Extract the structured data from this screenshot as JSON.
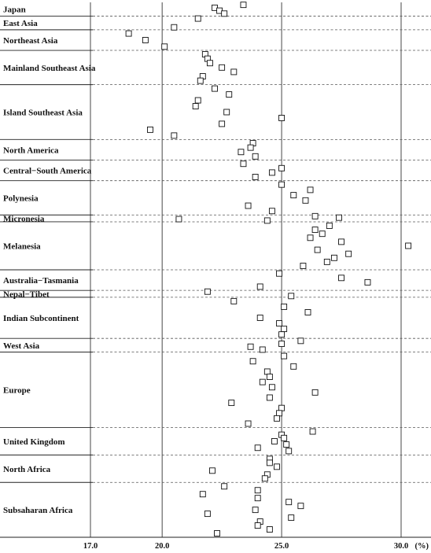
{
  "chart_data": {
    "type": "scatter",
    "x_unit": "(%)",
    "xlim": [
      17.0,
      30.5
    ],
    "x_ticks": [
      "17.0",
      "20.0",
      "25.0",
      "30.0"
    ],
    "x_tick_values": [
      17.0,
      20.0,
      25.0,
      30.0
    ],
    "grid": "vertical gridlines at ticks",
    "regions": [
      {
        "name": "Japan",
        "rows": 2
      },
      {
        "name": "East Asia",
        "rows": 2
      },
      {
        "name": "Northeast Asia",
        "rows": 3
      },
      {
        "name": "Mainland Southeast Asia",
        "rows": 5
      },
      {
        "name": "Island Southeast Asia",
        "rows": 8
      },
      {
        "name": "North America",
        "rows": 3
      },
      {
        "name": "Central−South America",
        "rows": 3
      },
      {
        "name": "Polynesia",
        "rows": 5
      },
      {
        "name": "Micronesia",
        "rows": 1
      },
      {
        "name": "Melanesia",
        "rows": 7
      },
      {
        "name": "Australia−Tasmania",
        "rows": 3
      },
      {
        "name": "Nepal−Tibet",
        "rows": 1
      },
      {
        "name": "Indian Subcontinent",
        "rows": 6
      },
      {
        "name": "West Asia",
        "rows": 2
      },
      {
        "name": "Europe",
        "rows": 11
      },
      {
        "name": "United Kingdom",
        "rows": 4
      },
      {
        "name": "North Africa",
        "rows": 4
      },
      {
        "name": "Subsaharan Africa",
        "rows": 8
      }
    ],
    "points": [
      {
        "region": "Japan",
        "values": [
          23.4,
          22.2,
          22.4,
          22.6
        ]
      },
      {
        "region": "East Asia",
        "values": [
          21.5,
          20.5
        ]
      },
      {
        "region": "Northeast Asia",
        "values": [
          18.6,
          19.3,
          20.1
        ]
      },
      {
        "region": "Mainland Southeast Asia",
        "values": [
          21.8,
          21.9,
          22.0,
          22.5,
          23.0,
          21.7,
          21.6
        ]
      },
      {
        "region": "Island Southeast Asia",
        "values": [
          22.2,
          22.8,
          21.5,
          21.4,
          22.7,
          25.0,
          22.5,
          19.5,
          20.5
        ]
      },
      {
        "region": "North America",
        "values": [
          23.8,
          23.7,
          23.3,
          23.9
        ]
      },
      {
        "region": "Central−South America",
        "values": [
          23.4,
          25.0,
          24.6,
          23.9
        ]
      },
      {
        "region": "Polynesia",
        "values": [
          25.0,
          26.2,
          25.5,
          26.0,
          23.6,
          24.6
        ]
      },
      {
        "region": "Micronesia",
        "values": [
          26.4,
          27.4,
          20.7,
          24.4
        ]
      },
      {
        "region": "Melanesia",
        "values": [
          27.0,
          26.4,
          26.7,
          26.2,
          27.5,
          30.3,
          26.5,
          27.8,
          27.2,
          26.9,
          25.9
        ]
      },
      {
        "region": "Australia−Tasmania",
        "values": [
          24.9,
          27.5,
          28.6,
          24.1
        ]
      },
      {
        "region": "Nepal−Tibet",
        "values": [
          21.9,
          25.4
        ]
      },
      {
        "region": "Indian Subcontinent",
        "values": [
          23.0,
          25.1,
          26.1,
          24.1,
          24.9,
          25.1,
          25.0
        ]
      },
      {
        "region": "West Asia",
        "values": [
          25.8,
          25.0,
          23.7,
          24.2
        ]
      },
      {
        "region": "Europe",
        "values": [
          25.1,
          23.8,
          25.5,
          24.4,
          24.5,
          24.2,
          24.6,
          26.4,
          24.5,
          22.9,
          25.0,
          24.9,
          24.8,
          23.6
        ]
      },
      {
        "region": "United Kingdom",
        "values": [
          26.3,
          25.0,
          25.1,
          24.7,
          25.2,
          24.0,
          25.3
        ]
      },
      {
        "region": "North Africa",
        "values": [
          24.5,
          24.5,
          24.8,
          22.1,
          24.4,
          24.3
        ]
      },
      {
        "region": "Subsaharan Africa",
        "values": [
          22.6,
          24.0,
          21.7,
          24.0,
          25.3,
          25.8,
          23.9,
          21.9,
          25.4,
          24.1,
          24.0,
          24.5,
          22.3
        ]
      }
    ]
  }
}
